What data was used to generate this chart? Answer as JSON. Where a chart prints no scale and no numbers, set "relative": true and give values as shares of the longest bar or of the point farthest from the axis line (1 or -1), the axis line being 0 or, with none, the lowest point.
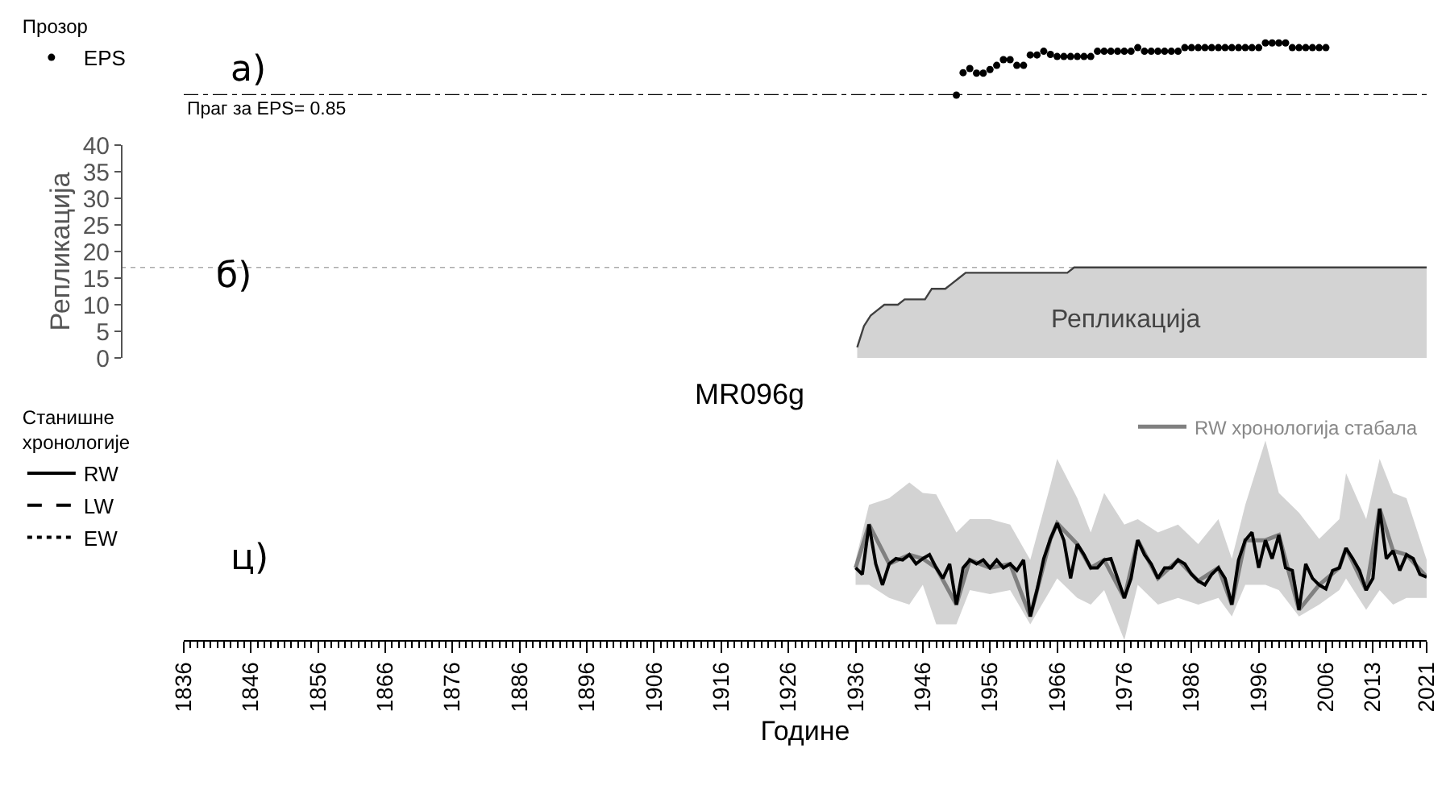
{
  "chart_data": [
    {
      "type": "scatter",
      "relative": true,
      "xlim": [
        1836,
        2021
      ],
      "tick_labels": false,
      "marker": "circle",
      "legend": "top left",
      "legend_title": "Прозор",
      "annotations": [
        "а)",
        "Праг за EPS= 0.85"
      ],
      "ref_lines": [
        {
          "axis": "y",
          "value": 0,
          "line_style": "dashed",
          "color": "#000000"
        }
      ],
      "x": [
        1951,
        1952,
        1953,
        1954,
        1955,
        1956,
        1957,
        1958,
        1959,
        1960,
        1961,
        1962,
        1963,
        1964,
        1965,
        1966,
        1967,
        1968,
        1969,
        1970,
        1971,
        1972,
        1973,
        1974,
        1975,
        1976,
        1977,
        1978,
        1979,
        1980,
        1981,
        1982,
        1983,
        1984,
        1985,
        1986,
        1987,
        1988,
        1989,
        1990,
        1991,
        1992,
        1993,
        1994,
        1995,
        1996,
        1997,
        1998,
        1999,
        2000,
        2001,
        2002,
        2003,
        2004,
        2005,
        2006
      ],
      "series": [
        {
          "name": "EPS",
          "color": "#000000",
          "values": [
            0,
            0.43,
            0.51,
            0.42,
            0.42,
            0.49,
            0.57,
            0.68,
            0.68,
            0.57,
            0.57,
            0.77,
            0.77,
            0.84,
            0.78,
            0.74,
            0.74,
            0.74,
            0.74,
            0.74,
            0.74,
            0.84,
            0.84,
            0.84,
            0.84,
            0.84,
            0.84,
            0.91,
            0.84,
            0.84,
            0.84,
            0.84,
            0.84,
            0.84,
            0.91,
            0.91,
            0.91,
            0.91,
            0.91,
            0.91,
            0.91,
            0.91,
            0.91,
            0.91,
            0.91,
            0.91,
            1,
            1,
            1,
            1,
            0.91,
            0.91,
            0.91,
            0.91,
            0.91,
            0.91
          ]
        }
      ]
    },
    {
      "type": "area",
      "xlim": [
        1836,
        2021
      ],
      "ylim": [
        0,
        40
      ],
      "yticks": [
        0,
        5,
        10,
        15,
        20,
        25,
        30,
        35,
        40
      ],
      "ylabel": "Репликација",
      "tick_labels": "y",
      "color": "#d3d3d3",
      "annotations": [
        "б)",
        "Репликација"
      ],
      "ref_lines": [
        {
          "axis": "y",
          "value": 17,
          "line_style": "dotted",
          "color": "#aaaaaa"
        }
      ],
      "x": [
        1937,
        1938,
        1939,
        1940,
        1941,
        1942,
        1943,
        1944,
        1945,
        1946,
        1947,
        1948,
        1949,
        1950,
        1951,
        1952,
        1953,
        1954,
        1955,
        1956,
        1957,
        1958,
        1959,
        1960,
        1961,
        1962,
        1963,
        1964,
        1965,
        1966,
        1967,
        1968,
        1969,
        1970,
        1971,
        1972,
        1973,
        1974,
        1975,
        1976,
        1977,
        1978,
        1979,
        1980,
        1981,
        1982,
        1983,
        1984,
        1985,
        1986,
        1987,
        1988,
        1989,
        1990,
        1991,
        1992,
        1993,
        1994,
        1995,
        1996,
        1997,
        1998,
        1999,
        2000,
        2001,
        2002,
        2003,
        2004,
        2005,
        2006,
        2007,
        2008,
        2009,
        2010,
        2011,
        2012,
        2013,
        2014,
        2015,
        2016,
        2017,
        2018,
        2019,
        2020,
        2021
      ],
      "values": [
        2,
        6,
        8,
        9,
        10,
        10,
        10,
        11,
        11,
        11,
        11,
        13,
        13,
        13,
        14,
        15,
        16,
        16,
        16,
        16,
        16,
        16,
        16,
        16,
        16,
        16,
        16,
        16,
        16,
        16,
        16,
        16,
        17,
        17,
        17,
        17,
        17,
        17,
        17,
        17,
        17,
        17,
        17,
        17,
        17,
        17,
        17,
        17,
        17,
        17,
        17,
        17,
        17,
        17,
        17,
        17,
        17,
        17,
        17,
        17,
        17,
        17,
        17,
        17,
        17,
        17,
        17,
        17,
        17,
        17,
        17,
        17,
        17,
        17,
        17,
        17,
        17,
        17,
        17,
        17,
        17,
        17,
        17,
        17,
        17
      ]
    },
    {
      "type": "line",
      "relative": true,
      "title": "MR096g",
      "xlabel": "Године",
      "xlim": [
        1836,
        2021
      ],
      "xticks": [
        1836,
        1846,
        1856,
        1866,
        1876,
        1886,
        1896,
        1906,
        1916,
        1926,
        1936,
        1946,
        1956,
        1966,
        1976,
        1986,
        1996,
        2006,
        2013,
        2021
      ],
      "tick_labels": "x",
      "legend": "left",
      "legend_title": "Станишне хронологије",
      "annotations": [
        "ц)"
      ],
      "series": [
        {
          "name": "RW хронологија стабала",
          "color": "#808080",
          "x": [
            1936,
            1938,
            1941,
            1944,
            1946,
            1948,
            1951,
            1953,
            1956,
            1959,
            1962,
            1965,
            1966,
            1969,
            1971,
            1973,
            1976,
            1978,
            1981,
            1984,
            1987,
            1990,
            1992,
            1994,
            1997,
            1999,
            2002,
            2005,
            2008,
            2009,
            2012,
            2014,
            2016,
            2018,
            2021
          ],
          "values": [
            0.55,
            0.88,
            0.58,
            0.65,
            0.62,
            0.55,
            0.27,
            0.61,
            0.55,
            0.58,
            0.18,
            0.77,
            0.89,
            0.73,
            0.55,
            0.61,
            0.32,
            0.76,
            0.47,
            0.61,
            0.45,
            0.55,
            0.27,
            0.76,
            0.76,
            0.8,
            0.23,
            0.42,
            0.55,
            0.7,
            0.38,
            1,
            0.68,
            0.65,
            0.48
          ],
          "lower": [
            0.42,
            0.42,
            0.32,
            0.27,
            0.42,
            0.12,
            0.12,
            0.38,
            0.35,
            0.38,
            0.12,
            0.38,
            0.47,
            0.32,
            0.27,
            0.38,
            0,
            0.42,
            0.27,
            0.32,
            0.27,
            0.32,
            0.18,
            0.42,
            0.42,
            0.38,
            0.18,
            0.27,
            0.38,
            0.47,
            0.23,
            0.38,
            0.27,
            0.32,
            0.32
          ],
          "upper": [
            0.61,
            1.03,
            1.08,
            1.2,
            1.12,
            1.11,
            0.82,
            0.92,
            0.92,
            0.88,
            0.61,
            1.18,
            1.38,
            1.08,
            0.82,
            1.12,
            0.88,
            0.92,
            0.82,
            0.88,
            0.73,
            0.92,
            0.62,
            1.03,
            1.52,
            1.12,
            0.97,
            0.77,
            0.92,
            1.27,
            0.92,
            1.38,
            1.12,
            1.08,
            0.61
          ]
        },
        {
          "name": "RW",
          "color": "#000000",
          "line_style": "solid",
          "x": [
            1936,
            1937,
            1938,
            1939,
            1940,
            1941,
            1942,
            1943,
            1944,
            1945,
            1946,
            1947,
            1948,
            1949,
            1950,
            1951,
            1952,
            1953,
            1954,
            1955,
            1956,
            1957,
            1958,
            1959,
            1960,
            1961,
            1962,
            1963,
            1964,
            1965,
            1966,
            1967,
            1968,
            1969,
            1970,
            1971,
            1972,
            1973,
            1974,
            1975,
            1976,
            1977,
            1978,
            1979,
            1980,
            1981,
            1982,
            1983,
            1984,
            1985,
            1986,
            1987,
            1988,
            1989,
            1990,
            1991,
            1992,
            1993,
            1994,
            1995,
            1996,
            1997,
            1998,
            1999,
            2000,
            2001,
            2002,
            2003,
            2004,
            2005,
            2006,
            2007,
            2008,
            2009,
            2010,
            2011,
            2012,
            2013,
            2014,
            2015,
            2016,
            2017,
            2018,
            2019,
            2020,
            2021
          ],
          "values": [
            0.55,
            0.5,
            0.88,
            0.58,
            0.42,
            0.58,
            0.62,
            0.61,
            0.65,
            0.58,
            0.62,
            0.65,
            0.55,
            0.47,
            0.58,
            0.27,
            0.55,
            0.61,
            0.58,
            0.61,
            0.55,
            0.61,
            0.55,
            0.58,
            0.53,
            0.61,
            0.18,
            0.38,
            0.62,
            0.77,
            0.89,
            0.76,
            0.47,
            0.73,
            0.65,
            0.55,
            0.55,
            0.61,
            0.62,
            0.47,
            0.32,
            0.47,
            0.76,
            0.65,
            0.58,
            0.47,
            0.55,
            0.55,
            0.61,
            0.58,
            0.5,
            0.45,
            0.42,
            0.5,
            0.55,
            0.47,
            0.27,
            0.61,
            0.76,
            0.82,
            0.55,
            0.76,
            0.62,
            0.8,
            0.55,
            0.53,
            0.23,
            0.58,
            0.47,
            0.42,
            0.39,
            0.53,
            0.55,
            0.7,
            0.62,
            0.53,
            0.38,
            0.47,
            1,
            0.62,
            0.68,
            0.53,
            0.65,
            0.62,
            0.5,
            0.48
          ]
        },
        {
          "name": "LW",
          "color": "#000000",
          "line_style": "dashed"
        },
        {
          "name": "EW",
          "color": "#000000",
          "line_style": "dotted"
        }
      ]
    }
  ]
}
